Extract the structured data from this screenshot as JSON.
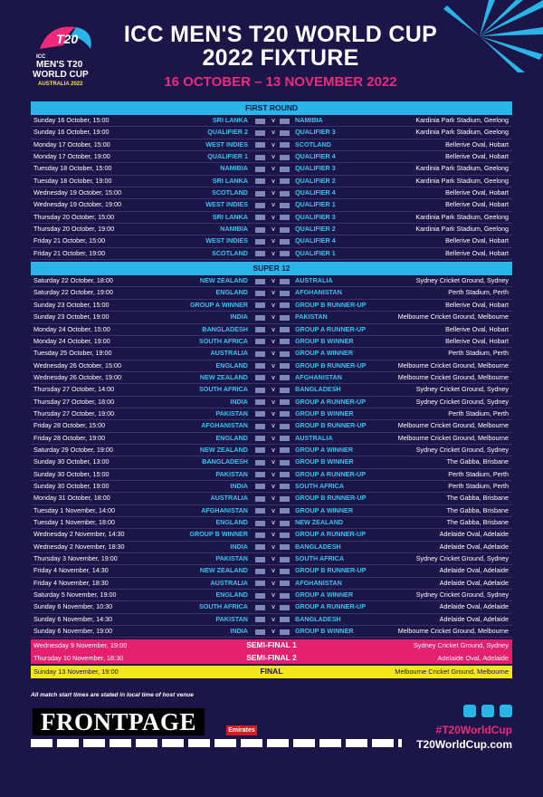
{
  "header": {
    "logo_mark": "T20",
    "logo_lines": [
      "ICC",
      "MEN'S T20",
      "WORLD CUP",
      "AUSTRALIA 2022"
    ],
    "title_lines": [
      "ICC MEN'S T20 WORLD CUP",
      "2022 FIXTURE"
    ],
    "subtitle": "16 OCTOBER – 13 NOVEMBER 2022"
  },
  "vs_label": "v",
  "first_round": {
    "title": "FIRST ROUND",
    "matches": [
      [
        "Sunday 16 October, 15:00",
        "SRI LANKA",
        "NAMIBIA",
        "Kardinia Park Stadium, Geelong"
      ],
      [
        "Sunday 16 October, 19:00",
        "QUALIFIER 2",
        "QUALIFIER 3",
        "Kardinia Park Stadium, Geelong"
      ],
      [
        "Monday 17 October, 15:00",
        "WEST INDIES",
        "SCOTLAND",
        "Bellerive Oval, Hobart"
      ],
      [
        "Monday 17 October, 19:00",
        "QUALIFIER 1",
        "QUALIFIER 4",
        "Bellerive Oval, Hobart"
      ],
      [
        "Tuesday 18 October, 15:00",
        "NAMIBIA",
        "QUALIFIER 3",
        "Kardinia Park Stadium, Geelong"
      ],
      [
        "Tuesday 18 October, 19:00",
        "SRI LANKA",
        "QUALIFIER 2",
        "Kardinia Park Stadium, Geelong"
      ],
      [
        "Wednesday 19 October, 15:00",
        "SCOTLAND",
        "QUALIFIER 4",
        "Bellerive Oval, Hobart"
      ],
      [
        "Wednesday 19 October, 19:00",
        "WEST INDIES",
        "QUALIFIER 1",
        "Bellerive Oval, Hobart"
      ],
      [
        "Thursday 20 October, 15:00",
        "SRI LANKA",
        "QUALIFIER 3",
        "Kardinia Park Stadium, Geelong"
      ],
      [
        "Thursday 20 October, 19:00",
        "NAMIBIA",
        "QUALIFIER 2",
        "Kardinia Park Stadium, Geelong"
      ],
      [
        "Friday 21 October, 15:00",
        "WEST INDIES",
        "QUALIFIER 4",
        "Bellerive Oval, Hobart"
      ],
      [
        "Friday 21 October, 19:00",
        "SCOTLAND",
        "QUALIFIER 1",
        "Bellerive Oval, Hobart"
      ]
    ]
  },
  "super12": {
    "title": "SUPER 12",
    "matches": [
      [
        "Saturday 22 October, 18:00",
        "NEW ZEALAND",
        "AUSTRALIA",
        "Sydney Cricket Ground, Sydney"
      ],
      [
        "Saturday 22 October, 19:00",
        "ENGLAND",
        "AFGHANISTAN",
        "Perth Stadium, Perth"
      ],
      [
        "Sunday 23 October, 15:00",
        "GROUP A WINNER",
        "GROUP B RUNNER-UP",
        "Bellerive Oval, Hobart"
      ],
      [
        "Sunday 23 October, 19:00",
        "INDIA",
        "PAKISTAN",
        "Melbourne Cricket Ground, Melbourne"
      ],
      [
        "Monday 24 October, 15:00",
        "BANGLADESH",
        "GROUP A RUNNER-UP",
        "Bellerive Oval, Hobart"
      ],
      [
        "Monday 24 October, 19:00",
        "SOUTH AFRICA",
        "GROUP B WINNER",
        "Bellerive Oval, Hobart"
      ],
      [
        "Tuesday 25 October, 19:00",
        "AUSTRALIA",
        "GROUP A WINNER",
        "Perth Stadium, Perth"
      ],
      [
        "Wednesday 26 October, 15:00",
        "ENGLAND",
        "GROUP B RUNNER-UP",
        "Melbourne Cricket Ground, Melbourne"
      ],
      [
        "Wednesday 26 October, 19:00",
        "NEW ZEALAND",
        "AFGHANISTAN",
        "Melbourne Cricket Ground, Melbourne"
      ],
      [
        "Thursday 27 October, 14:00",
        "SOUTH AFRICA",
        "BANGLADESH",
        "Sydney Cricket Ground, Sydney"
      ],
      [
        "Thursday 27 October, 18:00",
        "INDIA",
        "GROUP A RUNNER-UP",
        "Sydney Cricket Ground, Sydney"
      ],
      [
        "Thursday 27 October, 19:00",
        "PAKISTAN",
        "GROUP B WINNER",
        "Perth Stadium, Perth"
      ],
      [
        "Friday 28 October, 15:00",
        "AFGHANISTAN",
        "GROUP B RUNNER-UP",
        "Melbourne Cricket Ground, Melbourne"
      ],
      [
        "Friday 28 October, 19:00",
        "ENGLAND",
        "AUSTRALIA",
        "Melbourne Cricket Ground, Melbourne"
      ],
      [
        "Saturday 29 October, 19:00",
        "NEW ZEALAND",
        "GROUP A WINNER",
        "Sydney Cricket Ground, Sydney"
      ],
      [
        "Sunday 30 October, 13:00",
        "BANGLADESH",
        "GROUP B WINNER",
        "The Gabba, Brisbane"
      ],
      [
        "Sunday 30 October, 15:00",
        "PAKISTAN",
        "GROUP A RUNNER-UP",
        "Perth Stadium, Perth"
      ],
      [
        "Sunday 30 October, 19:00",
        "INDIA",
        "SOUTH AFRICA",
        "Perth Stadium, Perth"
      ],
      [
        "Monday 31 October, 18:00",
        "AUSTRALIA",
        "GROUP B RUNNER-UP",
        "The Gabba, Brisbane"
      ],
      [
        "Tuesday 1 November, 14:00",
        "AFGHANISTAN",
        "GROUP A WINNER",
        "The Gabba, Brisbane"
      ],
      [
        "Tuesday 1 November, 18:00",
        "ENGLAND",
        "NEW ZEALAND",
        "The Gabba, Brisbane"
      ],
      [
        "Wednesday 2 November, 14:30",
        "GROUP B WINNER",
        "GROUP A RUNNER-UP",
        "Adelaide Oval, Adelaide"
      ],
      [
        "Wednesday 2 November, 18:30",
        "INDIA",
        "BANGLADESH",
        "Adelaide Oval, Adelaide"
      ],
      [
        "Thursday 3 November, 19:00",
        "PAKISTAN",
        "SOUTH AFRICA",
        "Sydney Cricket Ground, Sydney"
      ],
      [
        "Friday 4 November, 14:30",
        "NEW ZEALAND",
        "GROUP B RUNNER-UP",
        "Adelaide Oval, Adelaide"
      ],
      [
        "Friday 4 November, 18:30",
        "AUSTRALIA",
        "AFGHANISTAN",
        "Adelaide Oval, Adelaide"
      ],
      [
        "Saturday 5 November, 19:00",
        "ENGLAND",
        "GROUP A WINNER",
        "Sydney Cricket Ground, Sydney"
      ],
      [
        "Sunday 6 November, 10:30",
        "SOUTH AFRICA",
        "GROUP A RUNNER-UP",
        "Adelaide Oval, Adelaide"
      ],
      [
        "Sunday 6 November, 14:30",
        "PAKISTAN",
        "BANGLADESH",
        "Adelaide Oval, Adelaide"
      ],
      [
        "Sunday 6 November, 19:00",
        "INDIA",
        "GROUP B WINNER",
        "Melbourne Cricket Ground, Melbourne"
      ]
    ]
  },
  "knockouts": [
    [
      "Wednesday 9 November, 19:00",
      "SEMI-FINAL 1",
      "Sydney Cricket Ground, Sydney"
    ],
    [
      "Thursday 10 November, 18:30",
      "SEMI-FINAL 2",
      "Adelaide Oval, Adelaide"
    ],
    [
      "Sunday 13 November, 19:00",
      "FINAL",
      "Melbourne Cricket Ground, Melbourne"
    ]
  ],
  "footer": {
    "note": "All match start times are stated in local time of host venue",
    "watermark": "FRONTPAGE",
    "sponsor": "Emirates",
    "hashtag": "#T20WorldCup",
    "website": "T20WorldCup.com"
  }
}
